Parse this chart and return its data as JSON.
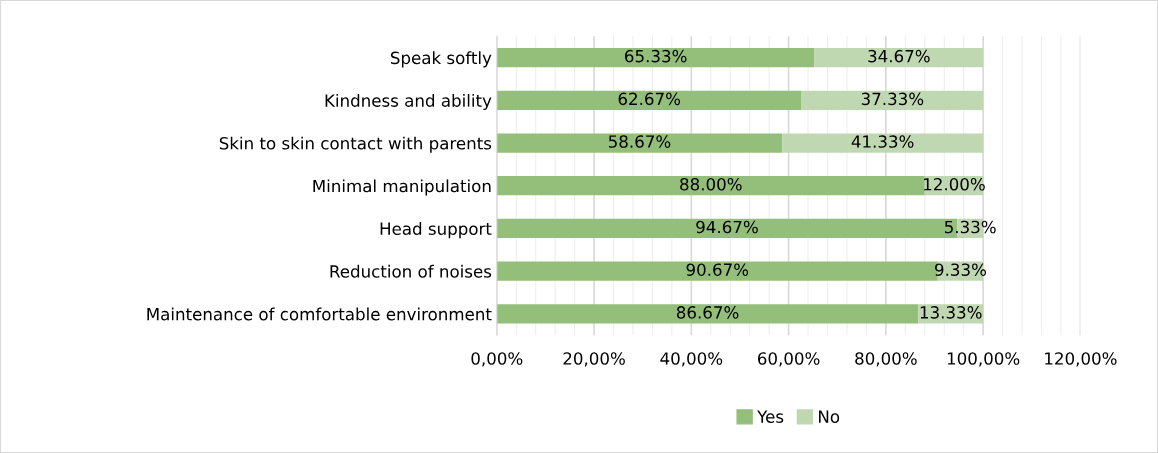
{
  "chart_data": {
    "type": "bar",
    "orientation": "horizontal",
    "stacked": true,
    "categories": [
      "Speak softly",
      "Kindness and ability",
      "Skin to skin contact with parents",
      "Minimal manipulation",
      "Head support",
      "Reduction of noises",
      "Maintenance of comfortable environment"
    ],
    "series": [
      {
        "name": "Yes",
        "color": "#93bf7b",
        "values": [
          65.33,
          62.67,
          58.67,
          88.0,
          94.67,
          90.67,
          86.67
        ],
        "value_labels": [
          "65.33%",
          "62.67%",
          "58.67%",
          "88.00%",
          "94.67%",
          "90.67%",
          "86.67%"
        ]
      },
      {
        "name": "No",
        "color": "#bfd8b1",
        "values": [
          34.67,
          37.33,
          41.33,
          12.0,
          5.33,
          9.33,
          13.33
        ],
        "value_labels": [
          "34.67%",
          "37.33%",
          "41.33%",
          "12.00%",
          "5.33%",
          "9.33%",
          "13.33%"
        ]
      }
    ],
    "xlim": [
      0,
      120
    ],
    "xticks": [
      {
        "value": 0,
        "label": "0,00%"
      },
      {
        "value": 4,
        "label": null
      },
      {
        "value": 8,
        "label": null
      },
      {
        "value": 12,
        "label": null
      },
      {
        "value": 16,
        "label": null
      },
      {
        "value": 20,
        "label": "20,00%"
      },
      {
        "value": 24,
        "label": null
      },
      {
        "value": 28,
        "label": null
      },
      {
        "value": 32,
        "label": null
      },
      {
        "value": 36,
        "label": null
      },
      {
        "value": 40,
        "label": "40,00%"
      },
      {
        "value": 44,
        "label": null
      },
      {
        "value": 48,
        "label": null
      },
      {
        "value": 52,
        "label": null
      },
      {
        "value": 56,
        "label": null
      },
      {
        "value": 60,
        "label": "60,00%"
      },
      {
        "value": 64,
        "label": null
      },
      {
        "value": 68,
        "label": null
      },
      {
        "value": 72,
        "label": null
      },
      {
        "value": 76,
        "label": null
      },
      {
        "value": 80,
        "label": "80,00%"
      },
      {
        "value": 84,
        "label": null
      },
      {
        "value": 88,
        "label": null
      },
      {
        "value": 92,
        "label": null
      },
      {
        "value": 96,
        "label": null
      },
      {
        "value": 100,
        "label": "100,00%"
      },
      {
        "value": 104,
        "label": null
      },
      {
        "value": 108,
        "label": null
      },
      {
        "value": 112,
        "label": null
      },
      {
        "value": 116,
        "label": null
      },
      {
        "value": 120,
        "label": "120,00%"
      }
    ],
    "grid": "x",
    "legend": "bottom"
  }
}
